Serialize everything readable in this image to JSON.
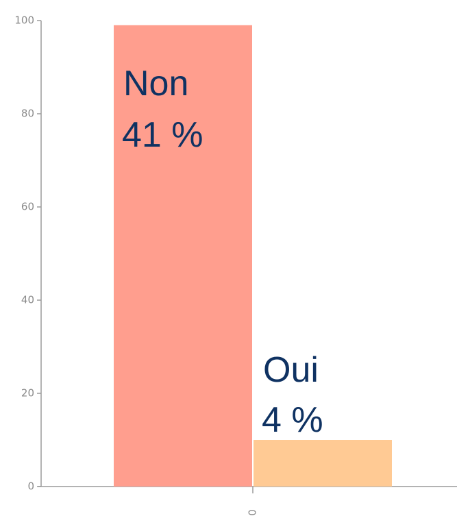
{
  "chart_data": {
    "type": "bar",
    "categories": [
      "0"
    ],
    "series": [
      {
        "name": "Non",
        "color": "#ff9e8e",
        "values": [
          99
        ],
        "label": "41 %"
      },
      {
        "name": "Oui",
        "color": "#ffca94",
        "values": [
          10
        ],
        "label": "4 %"
      }
    ],
    "ylim": [
      0,
      100
    ],
    "yticks": [
      0,
      20,
      40,
      60,
      80,
      100
    ],
    "grid": false
  }
}
